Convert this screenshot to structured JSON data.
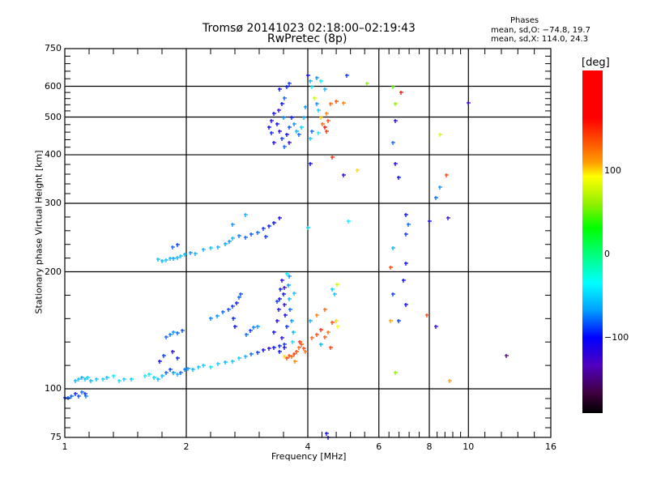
{
  "header": {
    "title_line1": "Tromsø 20141023 02:18:00–02:19:43",
    "title_line2": "RwPretec (8p)"
  },
  "phases": {
    "heading": "Phases",
    "o_mode": "mean, sd,O: −74.8, 19.7",
    "x_mode": "mean, sd,X: 114.0, 24.3"
  },
  "colorbar": {
    "unit": "[deg]",
    "tick_labels": [
      "100",
      "0",
      "−100"
    ],
    "tick_values": [
      100,
      0,
      -100
    ],
    "range": [
      -190,
      220
    ]
  },
  "chart_data": {
    "type": "scatter",
    "title": "Tromsø 20141023 02:18:00–02:19:43 RwPretec (8p)",
    "xlabel": "Frequency [MHz]",
    "ylabel": "Stationary phase Virtual Height [km]",
    "xscale": "log",
    "yscale": "log",
    "xlim": [
      1,
      16
    ],
    "ylim": [
      75,
      750
    ],
    "x_ticks": [
      1,
      2,
      4,
      6,
      8,
      10,
      16
    ],
    "x_tick_labels": [
      "1",
      "2",
      "4",
      "6",
      "8",
      "10",
      "16"
    ],
    "y_ticks": [
      75,
      100,
      200,
      300,
      400,
      500,
      600,
      750
    ],
    "y_tick_labels": [
      "75",
      "100",
      "200",
      "300",
      "400",
      "500",
      "600",
      "750"
    ],
    "x_grid": [
      2,
      4,
      6,
      8,
      10
    ],
    "y_grid": [
      100,
      200,
      300,
      400,
      500,
      600
    ],
    "color_variable": "phase [deg]",
    "points_format": [
      "frequency_MHz",
      "virtual_height_km",
      "phase_deg"
    ],
    "points": [
      [
        1.0,
        95,
        -90
      ],
      [
        1.02,
        95,
        -85
      ],
      [
        1.04,
        96,
        -80
      ],
      [
        1.06,
        97,
        -95
      ],
      [
        1.08,
        96,
        -85
      ],
      [
        1.1,
        98,
        -80
      ],
      [
        1.12,
        97,
        -90
      ],
      [
        1.13,
        96,
        -75
      ],
      [
        1.06,
        105,
        -60
      ],
      [
        1.08,
        106,
        -55
      ],
      [
        1.1,
        107,
        -65
      ],
      [
        1.12,
        106,
        -55
      ],
      [
        1.14,
        107,
        -50
      ],
      [
        1.16,
        105,
        -60
      ],
      [
        1.2,
        106,
        -55
      ],
      [
        1.24,
        106,
        -50
      ],
      [
        1.27,
        107,
        -55
      ],
      [
        1.32,
        108,
        -40
      ],
      [
        1.36,
        105,
        -45
      ],
      [
        1.4,
        106,
        -50
      ],
      [
        1.46,
        106,
        -50
      ],
      [
        1.58,
        108,
        -40
      ],
      [
        1.62,
        109,
        -45
      ],
      [
        1.66,
        107,
        -50
      ],
      [
        1.7,
        106,
        -55
      ],
      [
        1.74,
        108,
        -60
      ],
      [
        1.78,
        110,
        -80
      ],
      [
        1.82,
        112,
        -90
      ],
      [
        1.86,
        110,
        -70
      ],
      [
        1.9,
        109,
        -60
      ],
      [
        1.94,
        110,
        -80
      ],
      [
        1.98,
        112,
        -75
      ],
      [
        2.02,
        113,
        -70
      ],
      [
        2.08,
        112,
        -60
      ],
      [
        2.14,
        114,
        -55
      ],
      [
        2.2,
        115,
        -50
      ],
      [
        2.3,
        114,
        -45
      ],
      [
        2.4,
        116,
        -50
      ],
      [
        2.5,
        117,
        -60
      ],
      [
        2.6,
        118,
        -55
      ],
      [
        2.7,
        120,
        -50
      ],
      [
        2.8,
        121,
        -60
      ],
      [
        2.9,
        123,
        -80
      ],
      [
        3.0,
        124,
        -90
      ],
      [
        3.1,
        126,
        -100
      ],
      [
        3.2,
        127,
        -110
      ],
      [
        3.3,
        128,
        -100
      ],
      [
        3.4,
        129,
        -95
      ],
      [
        3.5,
        130,
        -90
      ],
      [
        1.72,
        118,
        -100
      ],
      [
        1.76,
        122,
        -90
      ],
      [
        1.85,
        125,
        -110
      ],
      [
        1.9,
        120,
        -95
      ],
      [
        1.78,
        136,
        -80
      ],
      [
        1.82,
        138,
        -75
      ],
      [
        1.86,
        140,
        -70
      ],
      [
        1.9,
        139,
        -80
      ],
      [
        1.95,
        141,
        -85
      ],
      [
        2.3,
        152,
        -75
      ],
      [
        2.38,
        154,
        -70
      ],
      [
        2.46,
        158,
        -80
      ],
      [
        2.54,
        160,
        -85
      ],
      [
        2.6,
        163,
        -90
      ],
      [
        2.66,
        166,
        -95
      ],
      [
        2.82,
        138,
        -80
      ],
      [
        2.88,
        141,
        -90
      ],
      [
        2.94,
        144,
        -75
      ],
      [
        3.0,
        145,
        -70
      ],
      [
        2.7,
        172,
        -80
      ],
      [
        2.72,
        175,
        -85
      ],
      [
        2.62,
        152,
        -95
      ],
      [
        2.64,
        145,
        -100
      ],
      [
        3.3,
        140,
        -100
      ],
      [
        3.35,
        150,
        -110
      ],
      [
        3.38,
        160,
        -105
      ],
      [
        3.4,
        170,
        -100
      ],
      [
        3.42,
        180,
        -95
      ],
      [
        3.45,
        190,
        -110
      ],
      [
        3.48,
        175,
        -100
      ],
      [
        3.5,
        165,
        -115
      ],
      [
        3.52,
        155,
        -100
      ],
      [
        3.55,
        145,
        -90
      ],
      [
        3.58,
        185,
        -70
      ],
      [
        3.6,
        170,
        -60
      ],
      [
        3.62,
        160,
        -80
      ],
      [
        3.65,
        150,
        -70
      ],
      [
        3.68,
        140,
        -60
      ],
      [
        3.45,
        135,
        -110
      ],
      [
        3.5,
        128,
        -105
      ],
      [
        3.4,
        125,
        -100
      ],
      [
        3.6,
        195,
        -70
      ],
      [
        3.55,
        198,
        -40
      ],
      [
        3.36,
        168,
        -90
      ],
      [
        3.5,
        182,
        -120
      ],
      [
        3.7,
        176,
        -55
      ],
      [
        3.66,
        132,
        -45
      ],
      [
        3.55,
        120,
        140
      ],
      [
        3.6,
        122,
        135
      ],
      [
        3.65,
        121,
        130
      ],
      [
        3.7,
        123,
        145
      ],
      [
        3.75,
        125,
        140
      ],
      [
        3.8,
        128,
        130
      ],
      [
        3.85,
        130,
        135
      ],
      [
        3.9,
        127,
        140
      ],
      [
        3.95,
        125,
        125
      ],
      [
        3.72,
        118,
        120
      ],
      [
        3.5,
        121,
        100
      ],
      [
        3.82,
        132,
        150
      ],
      [
        4.1,
        135,
        130
      ],
      [
        4.2,
        138,
        140
      ],
      [
        4.3,
        142,
        150
      ],
      [
        4.4,
        136,
        135
      ],
      [
        4.5,
        140,
        125
      ],
      [
        4.6,
        148,
        140
      ],
      [
        4.7,
        150,
        100
      ],
      [
        4.75,
        145,
        90
      ],
      [
        4.2,
        155,
        120
      ],
      [
        4.4,
        160,
        130
      ],
      [
        4.3,
        130,
        -60
      ],
      [
        4.6,
        180,
        -50
      ],
      [
        4.65,
        175,
        -55
      ],
      [
        4.55,
        128,
        145
      ],
      [
        4.05,
        150,
        -60
      ],
      [
        4.72,
        186,
        80
      ],
      [
        4.45,
        77,
        -100
      ],
      [
        4.5,
        75,
        -110
      ],
      [
        1.7,
        215,
        -55
      ],
      [
        1.74,
        213,
        -60
      ],
      [
        1.78,
        214,
        -55
      ],
      [
        1.82,
        216,
        -60
      ],
      [
        1.86,
        217,
        -65
      ],
      [
        1.9,
        218,
        -60
      ],
      [
        1.94,
        220,
        -55
      ],
      [
        1.98,
        222,
        -60
      ],
      [
        2.05,
        224,
        -70
      ],
      [
        2.1,
        223,
        -60
      ],
      [
        1.85,
        232,
        -80
      ],
      [
        1.9,
        235,
        -90
      ],
      [
        2.2,
        228,
        -60
      ],
      [
        2.3,
        230,
        -55
      ],
      [
        2.4,
        232,
        -60
      ],
      [
        2.5,
        236,
        -65
      ],
      [
        2.56,
        240,
        -70
      ],
      [
        2.6,
        244,
        -60
      ],
      [
        2.7,
        248,
        -75
      ],
      [
        2.8,
        245,
        -80
      ],
      [
        2.9,
        250,
        -85
      ],
      [
        3.0,
        252,
        -80
      ],
      [
        3.1,
        258,
        -90
      ],
      [
        3.2,
        262,
        -95
      ],
      [
        3.3,
        268,
        -100
      ],
      [
        3.4,
        275,
        -105
      ],
      [
        2.6,
        265,
        -70
      ],
      [
        2.8,
        280,
        -60
      ],
      [
        3.15,
        247,
        -90
      ],
      [
        3.2,
        470,
        -100
      ],
      [
        3.25,
        490,
        -110
      ],
      [
        3.3,
        510,
        -105
      ],
      [
        3.35,
        480,
        -100
      ],
      [
        3.4,
        460,
        -110
      ],
      [
        3.45,
        440,
        -90
      ],
      [
        3.5,
        420,
        -80
      ],
      [
        3.55,
        450,
        -100
      ],
      [
        3.6,
        470,
        -85
      ],
      [
        3.65,
        500,
        -95
      ],
      [
        3.3,
        430,
        -110
      ],
      [
        3.38,
        520,
        -120
      ],
      [
        3.45,
        540,
        -100
      ],
      [
        3.5,
        560,
        -80
      ],
      [
        3.55,
        600,
        -95
      ],
      [
        3.6,
        610,
        -90
      ],
      [
        3.4,
        590,
        -100
      ],
      [
        3.48,
        500,
        -70
      ],
      [
        3.7,
        480,
        -70
      ],
      [
        3.75,
        460,
        -60
      ],
      [
        3.8,
        450,
        -80
      ],
      [
        3.85,
        470,
        -50
      ],
      [
        3.9,
        500,
        -60
      ],
      [
        3.95,
        530,
        -70
      ],
      [
        3.25,
        455,
        -95
      ],
      [
        3.6,
        430,
        -120
      ],
      [
        4.0,
        640,
        -100
      ],
      [
        4.05,
        620,
        -60
      ],
      [
        4.1,
        600,
        -40
      ],
      [
        4.15,
        560,
        80
      ],
      [
        4.2,
        540,
        -70
      ],
      [
        4.25,
        520,
        -50
      ],
      [
        4.3,
        500,
        100
      ],
      [
        4.35,
        480,
        130
      ],
      [
        4.4,
        470,
        160
      ],
      [
        4.45,
        460,
        150
      ],
      [
        4.5,
        490,
        140
      ],
      [
        4.2,
        630,
        -70
      ],
      [
        4.3,
        620,
        -40
      ],
      [
        4.4,
        590,
        -60
      ],
      [
        4.1,
        460,
        -80
      ],
      [
        4.05,
        440,
        -50
      ],
      [
        4.25,
        455,
        -40
      ],
      [
        4.45,
        510,
        120
      ],
      [
        4.55,
        540,
        130
      ],
      [
        4.7,
        550,
        140
      ],
      [
        4.9,
        545,
        120
      ],
      [
        5.0,
        640,
        -90
      ],
      [
        5.6,
        610,
        60
      ],
      [
        4.9,
        355,
        -110
      ],
      [
        5.3,
        365,
        100
      ],
      [
        4.6,
        395,
        150
      ],
      [
        4.05,
        380,
        -100
      ],
      [
        5.05,
        270,
        -40
      ],
      [
        4.0,
        260,
        -50
      ],
      [
        6.5,
        600,
        50
      ],
      [
        6.6,
        490,
        -110
      ],
      [
        6.5,
        430,
        -80
      ],
      [
        6.6,
        380,
        -110
      ],
      [
        6.7,
        350,
        -100
      ],
      [
        6.8,
        580,
        160
      ],
      [
        6.6,
        540,
        60
      ],
      [
        7.0,
        280,
        -100
      ],
      [
        7.1,
        265,
        -80
      ],
      [
        6.5,
        230,
        -60
      ],
      [
        6.4,
        205,
        140
      ],
      [
        7.0,
        250,
        -90
      ],
      [
        7.0,
        210,
        -100
      ],
      [
        6.9,
        190,
        -100
      ],
      [
        6.5,
        175,
        -90
      ],
      [
        7.0,
        165,
        -100
      ],
      [
        6.7,
        150,
        -90
      ],
      [
        6.4,
        150,
        110
      ],
      [
        6.6,
        110,
        60
      ],
      [
        8.0,
        270,
        -110
      ],
      [
        8.3,
        310,
        -80
      ],
      [
        8.5,
        330,
        -70
      ],
      [
        8.8,
        355,
        140
      ],
      [
        8.9,
        275,
        -120
      ],
      [
        7.9,
        155,
        140
      ],
      [
        8.3,
        145,
        -120
      ],
      [
        8.5,
        450,
        80
      ],
      [
        10.0,
        545,
        -120
      ],
      [
        12.4,
        122,
        -150
      ],
      [
        9.0,
        105,
        110
      ]
    ]
  }
}
